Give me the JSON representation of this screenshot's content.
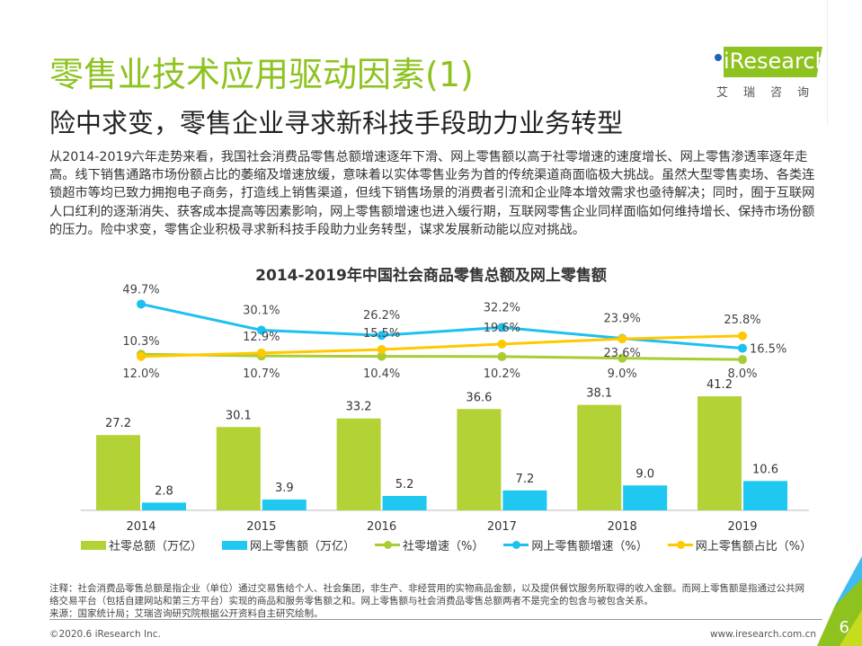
{
  "title": "零售业技术应用驱动因素(1)",
  "subtitle": "险中求变，零售企业寻求新科技手段助力业务转型",
  "body": "从2014-2019六年走势来看，我国社会消费品零售总额增速逐年下滑、网上零售额以高于社零增速的速度增长、网上零售渗透率逐年走高。线下销售通路市场份额占比的萎缩及增速放缓，意味着以实体零售业务为首的传统渠道商面临极大挑战。虽然大型零售卖场、各类连锁超市等均已致力拥抱电子商务，打造线上销售渠道，但线下销售场景的消费者引流和企业降本增效需求也亟待解决；同时，囿于互联网人口红利的逐渐消失、获客成本提高等因素影响，网上零售额增速也进入缓行期，互联网零售企业同样面临如何维持增长、保持市场份额的压力。险中求变，零售企业积极寻求新科技手段助力业务转型，谋求发展新动能以应对挑战。",
  "logo": {
    "text": "iResearch",
    "cn": "艾瑞咨询"
  },
  "chart_data": {
    "type": "bar+line",
    "title": "2014-2019年中国社会商品零售总额及网上零售额",
    "categories": [
      "2014",
      "2015",
      "2016",
      "2017",
      "2018",
      "2019"
    ],
    "series": [
      {
        "name": "社零总额（万亿）",
        "kind": "bar",
        "color": "#b2d235",
        "values": [
          27.2,
          30.1,
          33.2,
          36.6,
          38.1,
          41.2
        ],
        "labels": [
          "27.2",
          "30.1",
          "33.2",
          "36.6",
          "38.1",
          "41.2"
        ]
      },
      {
        "name": "网上零售额（万亿）",
        "kind": "bar",
        "color": "#1ec8f0",
        "values": [
          2.8,
          3.9,
          5.2,
          7.2,
          9.0,
          10.6
        ],
        "labels": [
          "2.8",
          "3.9",
          "5.2",
          "7.2",
          "9.0",
          "10.6"
        ]
      },
      {
        "name": "社零增速（%）",
        "kind": "line",
        "color": "#a8cc34",
        "values": [
          12.0,
          10.7,
          10.4,
          10.2,
          9.0,
          8.0
        ],
        "labels": [
          "12.0%",
          "10.7%",
          "10.4%",
          "10.2%",
          "9.0%",
          "8.0%"
        ]
      },
      {
        "name": "网上零售额增速（%）",
        "kind": "line",
        "color": "#1ec0f0",
        "values": [
          49.7,
          30.1,
          26.2,
          32.2,
          23.9,
          16.5
        ],
        "labels": [
          "49.7%",
          "30.1%",
          "26.2%",
          "32.2%",
          "23.9%",
          "16.5%"
        ]
      },
      {
        "name": "网上零售额占比（%）",
        "kind": "line",
        "color": "#ffc800",
        "values": [
          10.3,
          12.9,
          15.5,
          19.6,
          23.6,
          25.8
        ],
        "labels": [
          "10.3%",
          "12.9%",
          "15.5%",
          "19.6%",
          "23.6%",
          "25.8%"
        ]
      }
    ],
    "legend": "bottom"
  },
  "note": "注释：社会消费品零售总额是指企业（单位）通过交易售给个人、社会集团，非生产、非经营用的实物商品金额，以及提供餐饮服务所取得的收入金额。而网上零售额是指通过公共网络交易平台（包括自建网站和第三方平台）实现的商品和服务零售额之和。网上零售额与社会消费品零售总额两者不是完全的包含与被包含关系。",
  "source": "来源：国家统计局；艾瑞咨询研究院根据公开资料自主研究绘制。",
  "copyright": "©2020.6 iResearch Inc.",
  "url": "www.iresearch.com.cn",
  "page_number": "6"
}
